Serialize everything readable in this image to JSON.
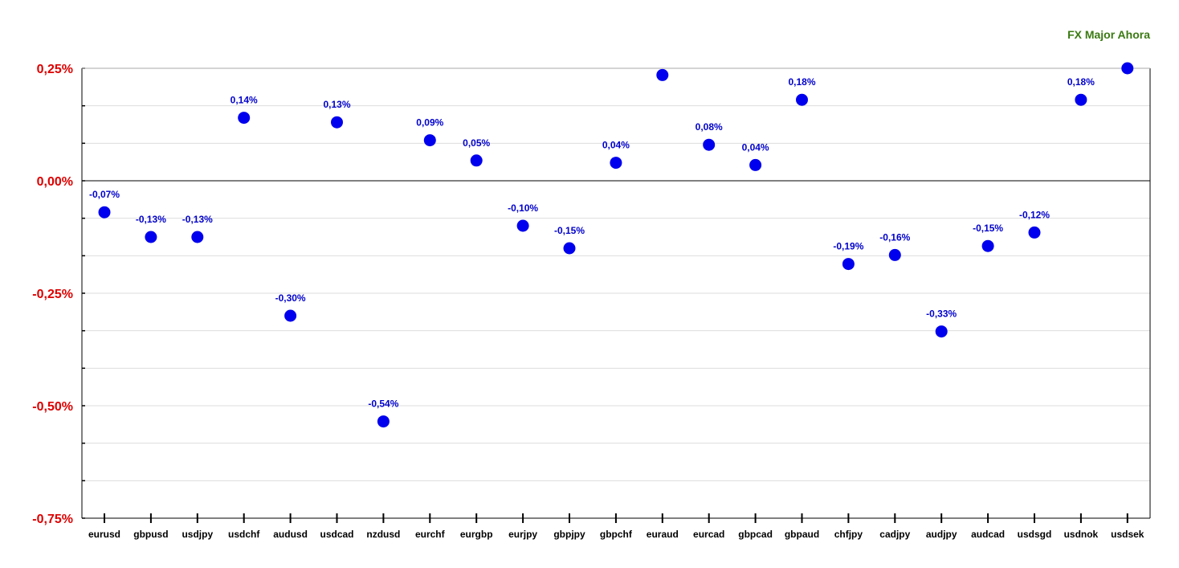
{
  "colors": {
    "title": "#3a7a12",
    "y_tick_label": "#dd0000",
    "point": "#0000ee",
    "data_label": "#0000cc",
    "x_tick_label": "#000000",
    "axis": "#000000",
    "gridline": "#dddddd"
  },
  "chart_data": {
    "type": "scatter",
    "title": "FX Major Ahora",
    "xlabel": "",
    "ylabel": "",
    "ylim": [
      -0.75,
      0.25
    ],
    "grid": true,
    "y_ticks": [
      "0,25%",
      "0,00%",
      "-0,25%",
      "-0,50%",
      "-0,75%"
    ],
    "categories": [
      "eurusd",
      "gbpusd",
      "usdjpy",
      "usdchf",
      "audusd",
      "usdcad",
      "nzdusd",
      "eurchf",
      "eurgbp",
      "eurjpy",
      "gbpjpy",
      "gbpchf",
      "euraud",
      "eurcad",
      "gbpcad",
      "gbpaud",
      "chfjpy",
      "cadjpy",
      "audjpy",
      "audcad",
      "usdsgd",
      "usdnok",
      "usdsek"
    ],
    "values": [
      -0.07,
      -0.125,
      -0.125,
      0.14,
      -0.3,
      0.13,
      -0.535,
      0.09,
      0.045,
      -0.1,
      -0.15,
      0.04,
      0.235,
      0.08,
      0.035,
      0.18,
      -0.185,
      -0.165,
      -0.335,
      -0.145,
      -0.115,
      0.18,
      0.25
    ],
    "data_labels": [
      "-0,07%",
      "-0,13%",
      "-0,13%",
      "0,14%",
      "-0,30%",
      "0,13%",
      "-0,54%",
      "0,09%",
      "0,05%",
      "-0,10%",
      "-0,15%",
      "0,04%",
      "",
      "0,08%",
      "0,04%",
      "0,18%",
      "-0,19%",
      "-0,16%",
      "-0,33%",
      "-0,15%",
      "-0,12%",
      "0,18%",
      ""
    ]
  }
}
